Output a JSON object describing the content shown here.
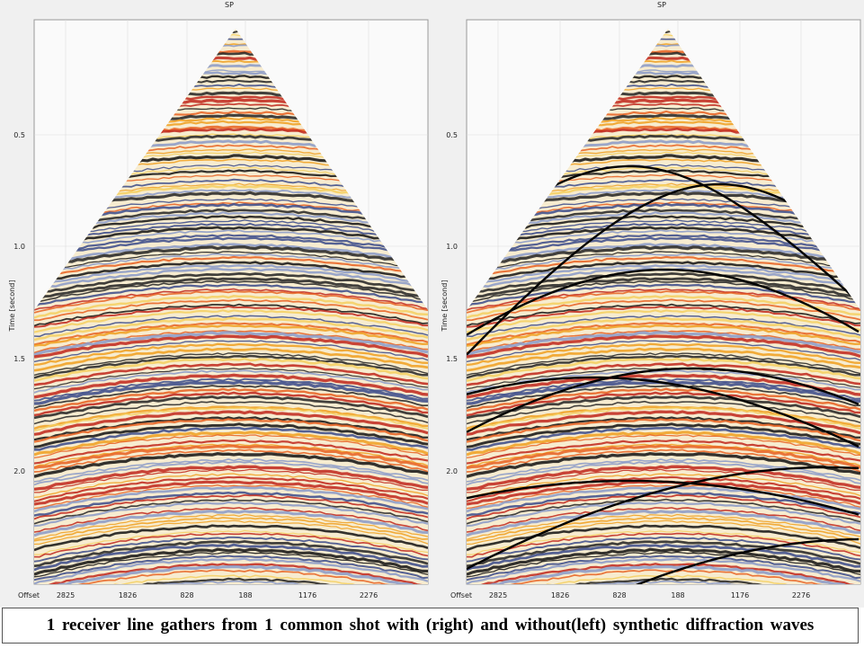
{
  "panels": [
    {
      "top_label": "SP",
      "y_axis_label": "Time [second]",
      "y_ticks": [
        "0.5",
        "1.0",
        "1.5",
        "2.0"
      ],
      "x_axis_label": "Offset",
      "x_ticks": [
        "2825",
        "1826",
        "828",
        "188",
        "1176",
        "2276"
      ]
    },
    {
      "top_label": "SP",
      "y_axis_label": "Time [second]",
      "y_ticks": [
        "0.5",
        "1.0",
        "1.5",
        "2.0"
      ],
      "x_axis_label": "Offset",
      "x_ticks": [
        "2825",
        "1826",
        "828",
        "188",
        "1176",
        "2276"
      ]
    }
  ],
  "caption": "1 receiver line gathers from 1 common shot with (right) and without(left) synthetic diffraction waves"
}
